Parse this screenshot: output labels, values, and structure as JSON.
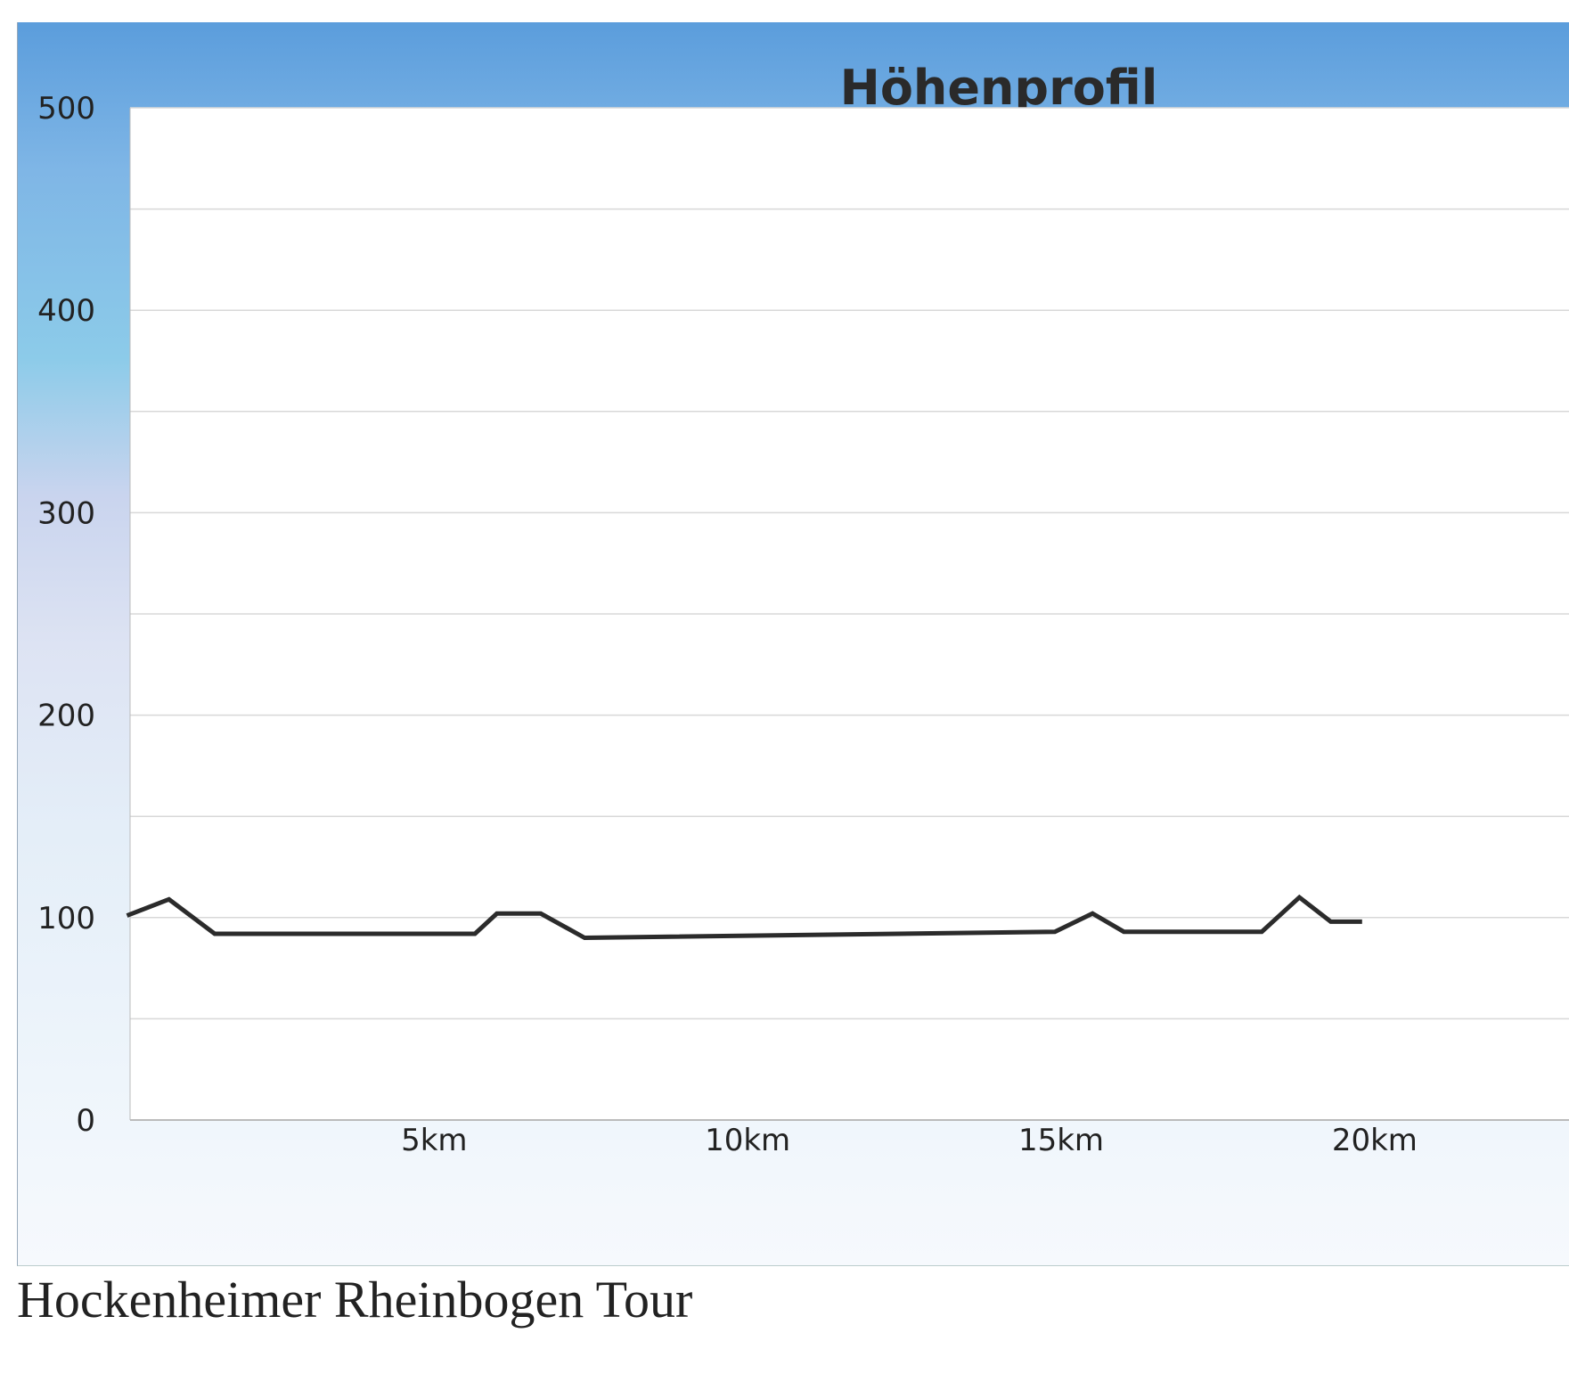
{
  "chart_data": {
    "type": "line",
    "title": "Höhenprofil",
    "xlabel": "",
    "ylabel": "",
    "xlim": [
      0.15,
      23.1
    ],
    "ylim": [
      0,
      500
    ],
    "grid": true,
    "y_ticks": [
      0,
      100,
      200,
      300,
      400,
      500
    ],
    "y_tick_labels": [
      "0",
      "100",
      "200",
      "300",
      "400",
      "500"
    ],
    "x_ticks": [
      5,
      10,
      15,
      20
    ],
    "x_tick_labels": [
      "5km",
      "10km",
      "15km",
      "20km"
    ],
    "series": [
      {
        "x": [
          0.1,
          0.77,
          1.5,
          5.65,
          6.0,
          6.7,
          7.4,
          14.9,
          15.5,
          16.0,
          18.2,
          18.8,
          19.3,
          19.8
        ],
        "y": [
          101,
          109,
          92,
          92,
          102,
          102,
          90,
          93,
          102,
          93,
          93,
          110,
          98,
          98
        ],
        "color": "#2b2b2b"
      }
    ]
  },
  "caption": "Hockenheimer Rheinbogen Tour"
}
